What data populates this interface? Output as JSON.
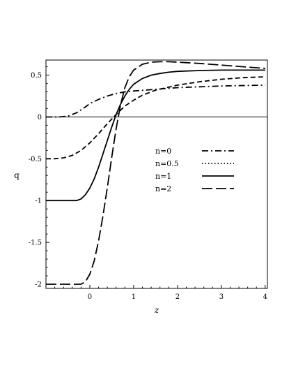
{
  "chart_data": {
    "type": "line",
    "xlabel": "z",
    "ylabel": "q",
    "xlim": [
      -1,
      4.05
    ],
    "ylim": [
      -2.05,
      0.68
    ],
    "x_ticks": [
      0,
      1,
      2,
      3,
      4
    ],
    "y_ticks": [
      -2,
      -1.5,
      -1,
      -0.5,
      0,
      0.5
    ],
    "x_tick_labels": [
      "0",
      "1",
      "2",
      "3",
      "4"
    ],
    "y_tick_labels": [
      "-2",
      "-1.5",
      "-1",
      "-0.5",
      "0",
      "0.5"
    ],
    "grid": false,
    "legend_position": "center-right",
    "series": [
      {
        "name": "n=0",
        "style": "dashdot",
        "x": [
          -1,
          -0.7,
          -0.5,
          -0.3,
          -0.1,
          0,
          0.2,
          0.4,
          0.6,
          0.8,
          1,
          1.5,
          2,
          2.5,
          3,
          3.5,
          4
        ],
        "y": [
          0,
          0,
          0.01,
          0.05,
          0.12,
          0.16,
          0.21,
          0.25,
          0.28,
          0.3,
          0.31,
          0.33,
          0.35,
          0.36,
          0.37,
          0.375,
          0.38
        ]
      },
      {
        "name": "n=0.5",
        "style": "dotted",
        "x": [],
        "y": []
      },
      {
        "name": "n=1",
        "style": "solid",
        "x": [
          -1,
          -0.3,
          -0.2,
          -0.1,
          0,
          0.1,
          0.2,
          0.3,
          0.4,
          0.5,
          0.6,
          0.7,
          0.8,
          0.9,
          1,
          1.2,
          1.4,
          1.6,
          1.8,
          2,
          2.5,
          3,
          3.5,
          4
        ],
        "y": [
          -1,
          -1,
          -0.98,
          -0.93,
          -0.85,
          -0.74,
          -0.6,
          -0.44,
          -0.28,
          -0.12,
          0.03,
          0.15,
          0.25,
          0.33,
          0.39,
          0.46,
          0.5,
          0.52,
          0.535,
          0.545,
          0.555,
          0.56,
          0.56,
          0.56
        ]
      },
      {
        "name": "n=2",
        "style": "longdash",
        "x": [
          -1,
          -0.2,
          -0.1,
          0,
          0.1,
          0.2,
          0.3,
          0.4,
          0.5,
          0.6,
          0.7,
          0.8,
          0.9,
          1,
          1.2,
          1.4,
          1.6,
          1.8,
          2,
          2.5,
          3,
          3.5,
          4
        ],
        "y": [
          -2,
          -2,
          -1.97,
          -1.88,
          -1.72,
          -1.48,
          -1.18,
          -0.84,
          -0.48,
          -0.14,
          0.14,
          0.35,
          0.48,
          0.56,
          0.63,
          0.655,
          0.66,
          0.66,
          0.655,
          0.64,
          0.62,
          0.6,
          0.58
        ]
      },
      {
        "name": "",
        "style": "mediumdash",
        "x": [
          -1,
          -0.8,
          -0.6,
          -0.4,
          -0.2,
          0,
          0.2,
          0.4,
          0.6,
          0.8,
          1,
          1.2,
          1.5,
          2,
          2.5,
          3,
          3.5,
          4
        ],
        "y": [
          -0.5,
          -0.5,
          -0.49,
          -0.46,
          -0.4,
          -0.31,
          -0.2,
          -0.08,
          0.03,
          0.13,
          0.2,
          0.26,
          0.32,
          0.38,
          0.42,
          0.45,
          0.47,
          0.48
        ]
      }
    ]
  }
}
